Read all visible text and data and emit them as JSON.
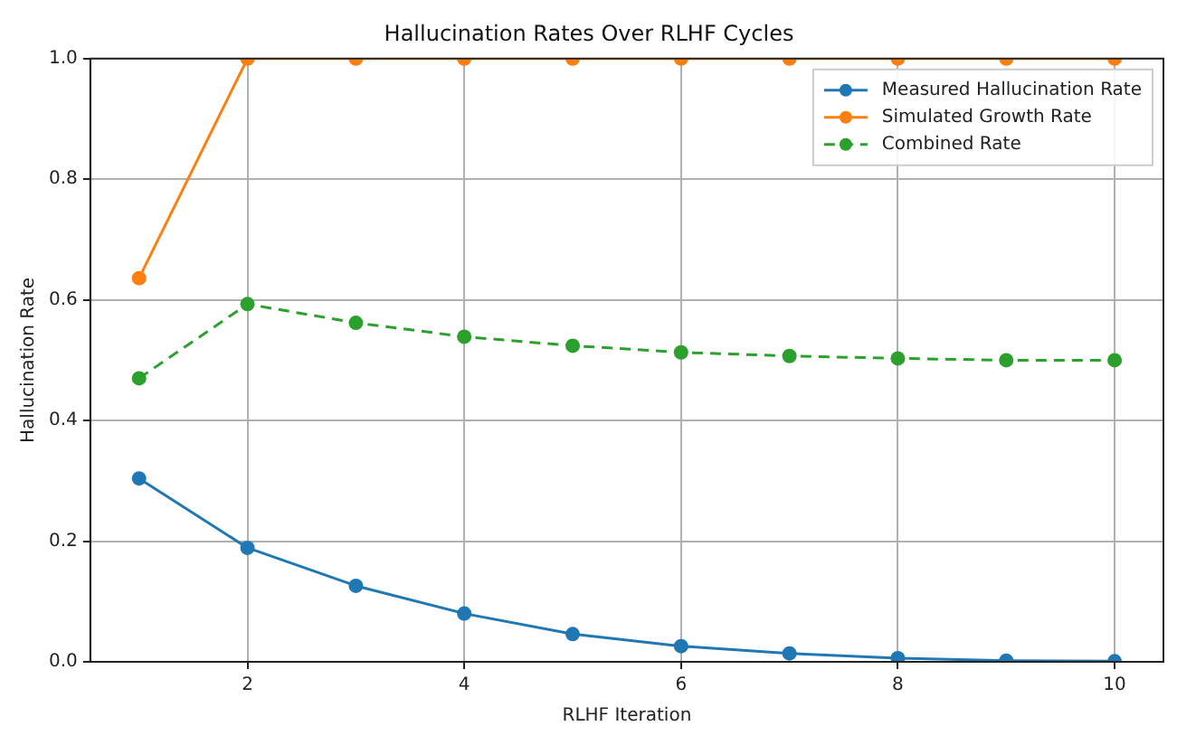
{
  "chart_data": {
    "type": "line",
    "title": "Hallucination Rates Over RLHF Cycles",
    "xlabel": "RLHF Iteration",
    "ylabel": "Hallucination Rate",
    "x": [
      1,
      2,
      3,
      4,
      5,
      6,
      7,
      8,
      9,
      10
    ],
    "series": [
      {
        "name": "Measured Hallucination Rate",
        "color": "#1f77b4",
        "values": [
          0.304,
          0.189,
          0.126,
          0.08,
          0.046,
          0.026,
          0.014,
          0.006,
          0.002,
          0.001
        ],
        "line_style": "solid"
      },
      {
        "name": "Simulated Growth Rate",
        "color": "#ff7f0e",
        "values": [
          0.636,
          1.0,
          1.0,
          1.0,
          1.0,
          1.0,
          1.0,
          1.0,
          1.0,
          1.0
        ],
        "line_style": "solid"
      },
      {
        "name": "Combined Rate",
        "color": "#2ca02c",
        "values": [
          0.47,
          0.593,
          0.562,
          0.539,
          0.524,
          0.513,
          0.507,
          0.503,
          0.5,
          0.5
        ],
        "line_style": "dashed"
      }
    ],
    "xlim": [
      0.55,
      10.45
    ],
    "xticks": [
      2,
      4,
      6,
      8,
      10
    ],
    "ylim": [
      0,
      1
    ],
    "yticks": [
      {
        "value": 0,
        "label": "0.0"
      },
      {
        "value": 0.2,
        "label": "0.2"
      },
      {
        "value": 0.4,
        "label": "0.4"
      },
      {
        "value": 0.6,
        "label": "0.6"
      },
      {
        "value": 0.8,
        "label": "0.8"
      },
      {
        "value": 1,
        "label": "1.0"
      }
    ],
    "grid": true,
    "legend": "top right",
    "marker": "circle"
  }
}
